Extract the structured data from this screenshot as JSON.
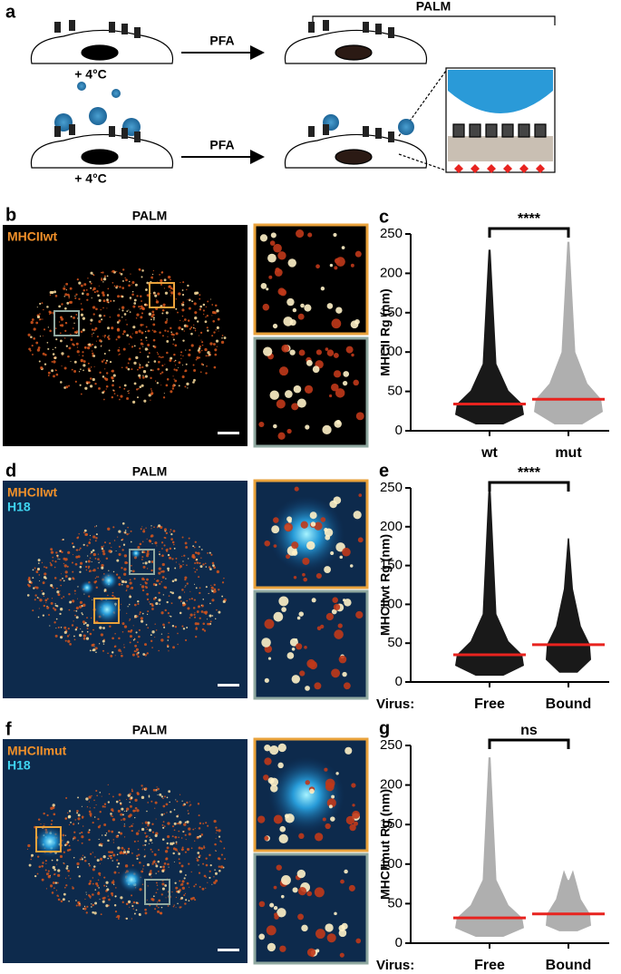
{
  "figure": {
    "panel_labels": [
      "a",
      "b",
      "c",
      "d",
      "e",
      "f",
      "g"
    ],
    "schematic": {
      "palm": "PALM",
      "pfa": [
        "PFA",
        "PFA"
      ],
      "temp": [
        "+ 4°C",
        "+ 4°C"
      ]
    },
    "images": [
      {
        "title": "PALM",
        "channels": [
          "MHCIIwt"
        ]
      },
      {
        "title": "PALM",
        "channels": [
          "MHCIIwt",
          "H18"
        ]
      },
      {
        "title": "PALM",
        "channels": [
          "MHCIImut",
          "H18"
        ]
      }
    ]
  },
  "chart_data": [
    {
      "type": "dot",
      "ylabel": "MHCII Rg (nm)",
      "categories": [
        "wt",
        "mut"
      ],
      "values": [
        34,
        40
      ],
      "max": [
        230,
        240
      ],
      "min": [
        8,
        8
      ],
      "colors": [
        "#000000",
        "#a6a6a6"
      ],
      "median_color": "#e8231f",
      "ylim": [
        0,
        250
      ],
      "yticks": [
        0,
        50,
        100,
        150,
        200,
        250
      ],
      "annotation": "****"
    },
    {
      "type": "dot",
      "ylabel": "MHCIIwt Rg (nm)",
      "xlabel": "Virus:",
      "categories": [
        "Free",
        "Bound"
      ],
      "values": [
        35,
        48
      ],
      "max": [
        250,
        185
      ],
      "min": [
        8,
        12
      ],
      "colors": [
        "#000000",
        "#000000"
      ],
      "median_color": "#e8231f",
      "ylim": [
        0,
        250
      ],
      "yticks": [
        0,
        50,
        100,
        150,
        200,
        250
      ],
      "annotation": "****"
    },
    {
      "type": "dot",
      "ylabel": "MHCIImut Rg (nm)",
      "xlabel": "Virus:",
      "categories": [
        "Free",
        "Bound"
      ],
      "values": [
        32,
        37
      ],
      "max": [
        235,
        80
      ],
      "min": [
        8,
        15
      ],
      "colors": [
        "#a6a6a6",
        "#a6a6a6"
      ],
      "median_color": "#e8231f",
      "ylim": [
        0,
        250
      ],
      "yticks": [
        0,
        50,
        100,
        150,
        200,
        250
      ],
      "annotation": "ns"
    }
  ]
}
